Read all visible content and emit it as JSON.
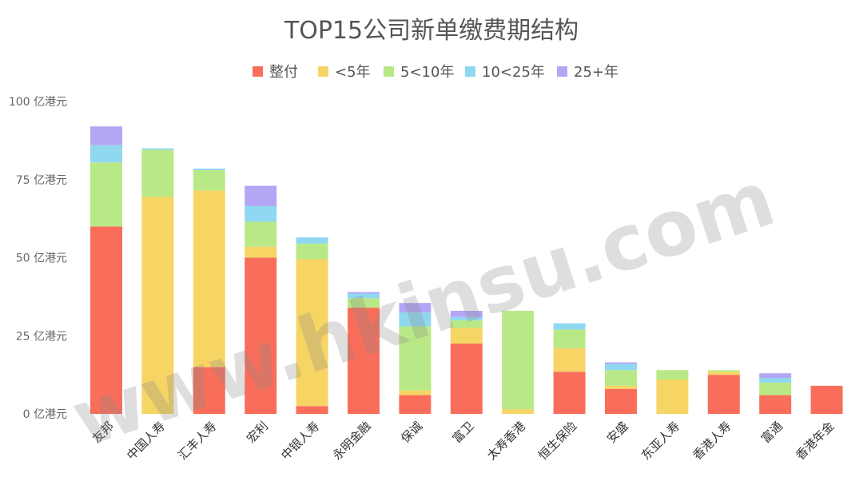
{
  "chart_data": {
    "type": "bar",
    "stacked": true,
    "title": "TOP15公司新单缴费期结构",
    "legend_position": "top",
    "grid": false,
    "ylim": [
      0,
      100
    ],
    "y_ticks": [
      0,
      25,
      50,
      75,
      100
    ],
    "y_tick_labels": [
      "0 亿港元",
      "25 亿港元",
      "50 亿港元",
      "75 亿港元",
      "100 亿港元"
    ],
    "categories": [
      "友邦",
      "中国人寿",
      "汇丰人寿",
      "宏利",
      "中银人寿",
      "永明金融",
      "保诚",
      "富卫",
      "太寿香港",
      "恒生保险",
      "安盛",
      "东亚人寿",
      "香港人寿",
      "富通",
      "香港年金"
    ],
    "series": [
      {
        "name": "整付",
        "color": "#f96e5b",
        "values": [
          60,
          0,
          15,
          50,
          2.5,
          34,
          6,
          22.5,
          0,
          13.5,
          8,
          0,
          12.5,
          6,
          9
        ]
      },
      {
        "name": "<5年",
        "color": "#f6d565",
        "values": [
          0,
          69.5,
          56.5,
          3.5,
          47,
          0,
          1.5,
          5,
          1.5,
          7.5,
          1,
          11,
          1,
          0,
          0
        ]
      },
      {
        "name": "5<10年",
        "color": "#b9e986",
        "values": [
          20.5,
          15,
          6.5,
          8,
          5,
          3,
          20.5,
          2.5,
          31.5,
          6,
          5,
          3,
          0.5,
          4,
          0
        ]
      },
      {
        "name": "10<25年",
        "color": "#8fd8f0",
        "values": [
          5.5,
          0.5,
          0.5,
          5,
          2,
          1.5,
          4.5,
          1,
          0,
          2,
          2,
          0,
          0,
          1.5,
          0
        ]
      },
      {
        "name": "25+年",
        "color": "#b4a6f5",
        "values": [
          6,
          0,
          0,
          6.5,
          0,
          0.5,
          3,
          2,
          0,
          0,
          0.5,
          0,
          0,
          1.5,
          0
        ]
      }
    ]
  },
  "watermark_text": "www.hkinsu.com"
}
